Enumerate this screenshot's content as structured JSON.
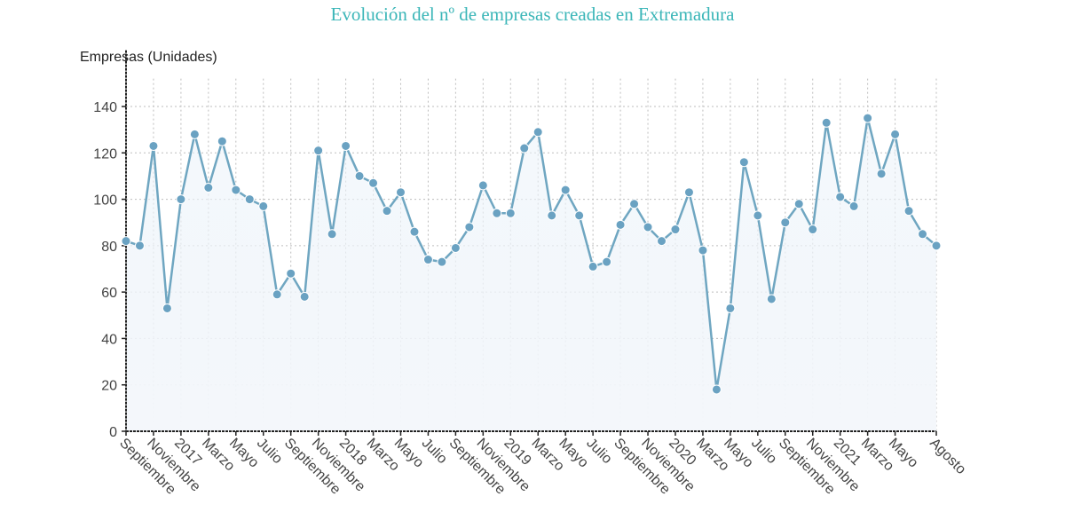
{
  "chart_data": {
    "type": "line",
    "title": "Evolución del nº de empresas creadas en Extremadura",
    "xlabel": "",
    "ylabel": "Empresas (Unidades)",
    "ylim": [
      0,
      152
    ],
    "yticks": [
      0,
      20,
      40,
      60,
      80,
      100,
      120,
      140
    ],
    "grid": true,
    "legend": "none",
    "colors": {
      "line": "#6fa6c1",
      "marker": "#6aa2c2",
      "fill_top": "#eaf2f9",
      "fill_bottom": "#f4f7fb",
      "title": "#3bb6b8"
    },
    "x": [
      "Septiembre 2016",
      "Octubre 2016",
      "Noviembre 2016",
      "Diciembre 2016",
      "Enero 2017",
      "Febrero 2017",
      "Marzo 2017",
      "Abril 2017",
      "Mayo 2017",
      "Junio 2017",
      "Julio 2017",
      "Agosto 2017",
      "Septiembre 2017",
      "Octubre 2017",
      "Noviembre 2017",
      "Diciembre 2017",
      "Enero 2018",
      "Febrero 2018",
      "Marzo 2018",
      "Abril 2018",
      "Mayo 2018",
      "Junio 2018",
      "Julio 2018",
      "Agosto 2018",
      "Septiembre 2018",
      "Octubre 2018",
      "Noviembre 2018",
      "Diciembre 2018",
      "Enero 2019",
      "Febrero 2019",
      "Marzo 2019",
      "Abril 2019",
      "Mayo 2019",
      "Junio 2019",
      "Julio 2019",
      "Agosto 2019",
      "Septiembre 2019",
      "Octubre 2019",
      "Noviembre 2019",
      "Diciembre 2019",
      "Enero 2020",
      "Febrero 2020",
      "Marzo 2020",
      "Abril 2020",
      "Mayo 2020",
      "Junio 2020",
      "Julio 2020",
      "Agosto 2020",
      "Septiembre 2020",
      "Octubre 2020",
      "Noviembre 2020",
      "Diciembre 2020",
      "Enero 2021",
      "Febrero 2021",
      "Marzo 2021",
      "Abril 2021",
      "Mayo 2021",
      "Junio 2021",
      "Julio 2021",
      "Agosto 2021"
    ],
    "tick_labels": [
      "Septiembre",
      "Noviembre",
      "2017",
      "Marzo",
      "Mayo",
      "Julio",
      "Septiembre",
      "Noviembre",
      "2018",
      "Marzo",
      "Mayo",
      "Julio",
      "Septiembre",
      "Noviembre",
      "2019",
      "Marzo",
      "Mayo",
      "Julio",
      "Septiembre",
      "Noviembre",
      "2020",
      "Marzo",
      "Mayo",
      "Julio",
      "Septiembre",
      "Noviembre",
      "2021",
      "Marzo",
      "Mayo",
      "Agosto"
    ],
    "tick_indices": [
      0,
      2,
      4,
      6,
      8,
      10,
      12,
      14,
      16,
      18,
      20,
      22,
      24,
      26,
      28,
      30,
      32,
      34,
      36,
      38,
      40,
      42,
      44,
      46,
      48,
      50,
      52,
      54,
      56,
      59
    ],
    "series": [
      {
        "name": "Empresas",
        "values": [
          82,
          80,
          123,
          53,
          100,
          128,
          105,
          125,
          104,
          100,
          97,
          59,
          68,
          58,
          121,
          85,
          123,
          110,
          107,
          95,
          103,
          86,
          74,
          73,
          79,
          88,
          106,
          94,
          94,
          122,
          129,
          93,
          104,
          93,
          71,
          73,
          89,
          98,
          88,
          82,
          87,
          103,
          78,
          18,
          53,
          116,
          93,
          57,
          90,
          98,
          87,
          133,
          101,
          97,
          135,
          111,
          128,
          95,
          85,
          80
        ]
      }
    ]
  }
}
